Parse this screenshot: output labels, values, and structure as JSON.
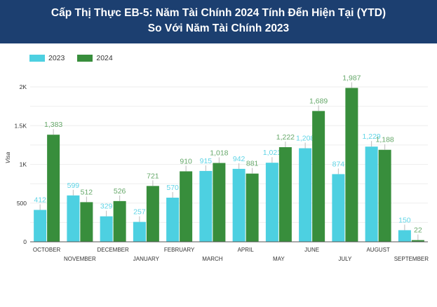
{
  "header": {
    "title_line1": "Cấp Thị Thực EB-5: Năm Tài Chính 2024 Tính Đến Hiện Tại (YTD)",
    "title_line2": "So Với Năm Tài Chính 2023"
  },
  "colors": {
    "header_bg": "#1c3f70",
    "series_2023": "#4dd0e1",
    "series_2024": "#388e3c",
    "label_2023": "#5fd4e6",
    "label_2024": "#66a86a"
  },
  "chart_data": {
    "type": "bar",
    "title": "Cấp Thị Thực EB-5: Năm Tài Chính 2024 Tính Đến Hiện Tại (YTD) So Với Năm Tài Chính 2023",
    "xlabel": "",
    "ylabel": "Visa",
    "ylim": [
      0,
      2000
    ],
    "yticks": [
      0,
      500,
      1000,
      1500,
      2000
    ],
    "ytick_labels": [
      "0",
      "500",
      "1K",
      "1.5K",
      "2K"
    ],
    "grid": true,
    "legend_position": "top-left",
    "categories": [
      "OCTOBER",
      "NOVEMBER",
      "DECEMBER",
      "JANUARY",
      "FEBRUARY",
      "MARCH",
      "APRIL",
      "MAY",
      "JUNE",
      "JULY",
      "AUGUST",
      "SEPTEMBER"
    ],
    "series": [
      {
        "name": "2023",
        "values": [
          412,
          599,
          329,
          257,
          570,
          915,
          942,
          1021,
          1208,
          874,
          1229,
          150
        ],
        "labels": [
          "412",
          "599",
          "329",
          "257",
          "570",
          "915",
          "942",
          "1,021",
          "1,208",
          "874",
          "1,229",
          "150"
        ]
      },
      {
        "name": "2024",
        "values": [
          1383,
          512,
          526,
          721,
          910,
          1018,
          881,
          1222,
          1689,
          1987,
          1188,
          22
        ],
        "labels": [
          "1,383",
          "512",
          "526",
          "721",
          "910",
          "1,018",
          "881",
          "1,222",
          "1,689",
          "1,987",
          "1,188",
          "22"
        ]
      }
    ]
  }
}
